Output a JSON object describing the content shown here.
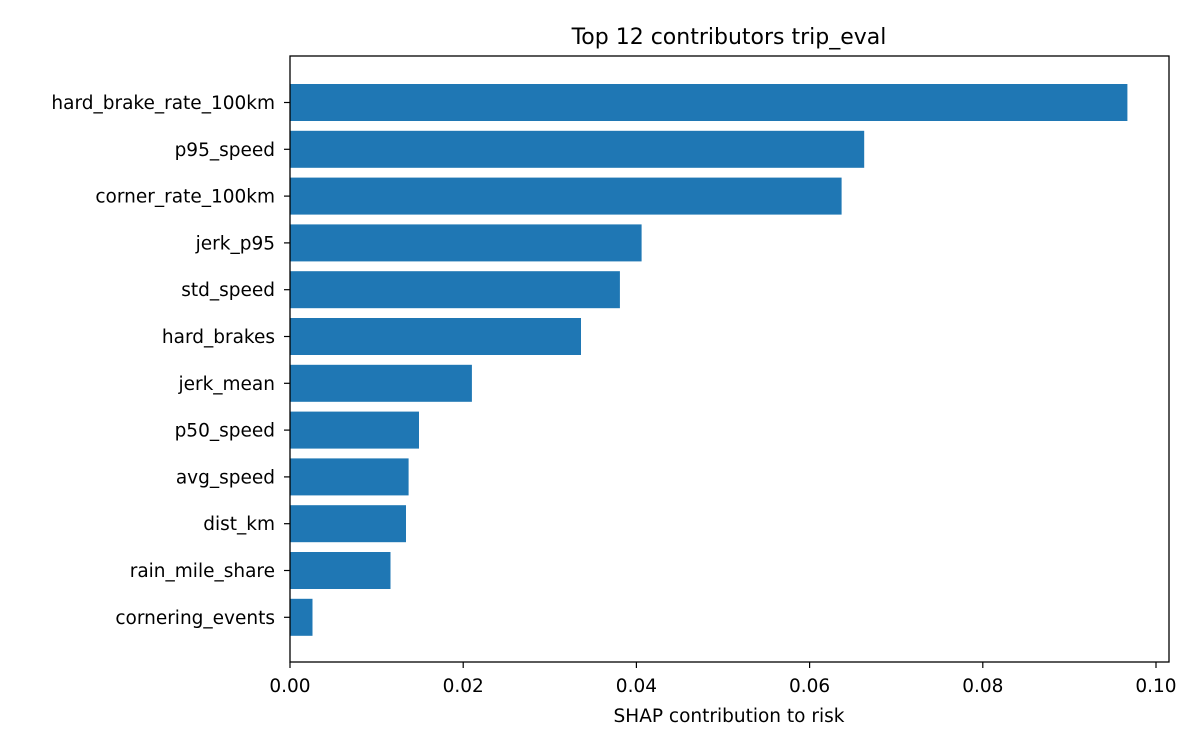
{
  "chart_data": {
    "type": "bar",
    "orientation": "horizontal",
    "title": "Top 12 contributors  trip_eval",
    "xlabel": "SHAP contribution to risk",
    "ylabel": "",
    "xlim": [
      0.0,
      0.1015
    ],
    "xticks": [
      0.0,
      0.02,
      0.04,
      0.06,
      0.08,
      0.1
    ],
    "xtick_labels": [
      "0.00",
      "0.02",
      "0.04",
      "0.06",
      "0.08",
      "0.10"
    ],
    "grid": false,
    "bar_color": "#1f77b4",
    "categories": [
      "hard_brake_rate_100km",
      "p95_speed",
      "corner_rate_100km",
      "jerk_p95",
      "std_speed",
      "hard_brakes",
      "jerk_mean",
      "p50_speed",
      "avg_speed",
      "dist_km",
      "rain_mile_share",
      "cornering_events"
    ],
    "values": [
      0.0967,
      0.0663,
      0.0637,
      0.0406,
      0.0381,
      0.0336,
      0.021,
      0.0149,
      0.0137,
      0.0134,
      0.0116,
      0.0026
    ]
  }
}
